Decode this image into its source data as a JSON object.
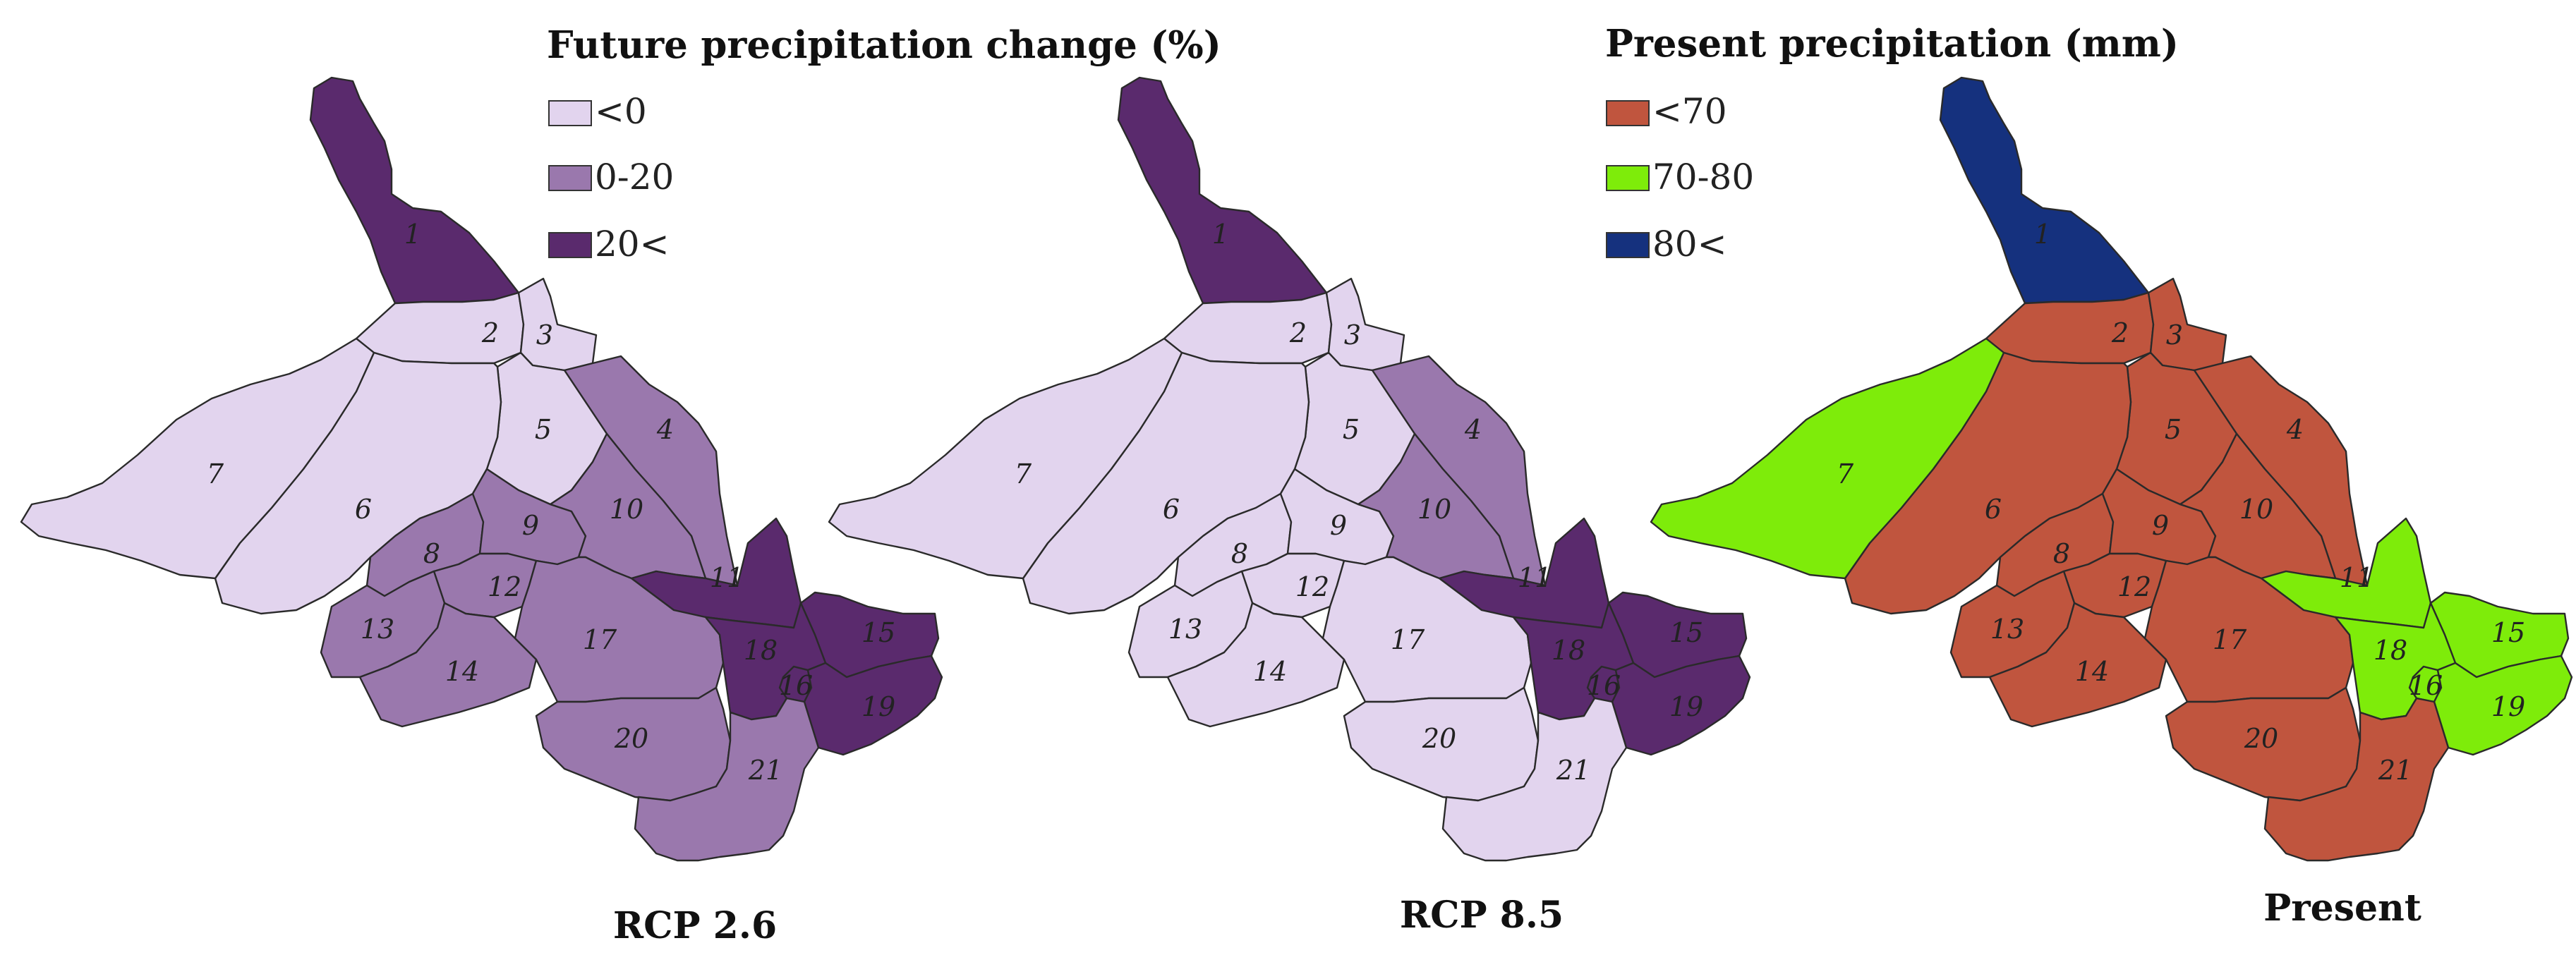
{
  "legends": {
    "future": {
      "title": "Future precipitation change (%)",
      "classes": [
        {
          "label": "<0",
          "color": "#e2d4ee"
        },
        {
          "label": "0-20",
          "color": "#9a78ad"
        },
        {
          "label": "20<",
          "color": "#5a2a6d"
        }
      ]
    },
    "present": {
      "title": "Present precipitation (mm)",
      "classes": [
        {
          "label": "<70",
          "color": "#c0553e"
        },
        {
          "label": "70-80",
          "color": "#7eec0a"
        },
        {
          "label": "80<",
          "color": "#15317e"
        }
      ]
    }
  },
  "panels": [
    {
      "title": "RCP 2.6",
      "legend": "future",
      "classes": {
        "1": 2,
        "2": 0,
        "3": 0,
        "4": 1,
        "5": 0,
        "6": 0,
        "7": 0,
        "8": 1,
        "9": 1,
        "10": 1,
        "11": 2,
        "12": 1,
        "13": 1,
        "14": 1,
        "15": 2,
        "16": 2,
        "17": 1,
        "18": 2,
        "19": 2,
        "20": 1,
        "21": 1
      }
    },
    {
      "title": "RCP 8.5",
      "legend": "future",
      "classes": {
        "1": 2,
        "2": 0,
        "3": 0,
        "4": 1,
        "5": 0,
        "6": 0,
        "7": 0,
        "8": 0,
        "9": 0,
        "10": 1,
        "11": 2,
        "12": 0,
        "13": 0,
        "14": 0,
        "15": 2,
        "16": 2,
        "17": 0,
        "18": 2,
        "19": 2,
        "20": 0,
        "21": 0
      }
    },
    {
      "title": "Present",
      "legend": "present",
      "classes": {
        "1": 2,
        "2": 0,
        "3": 0,
        "4": 0,
        "5": 0,
        "6": 0,
        "7": 1,
        "8": 0,
        "9": 0,
        "10": 0,
        "11": 1,
        "12": 0,
        "13": 0,
        "14": 0,
        "15": 1,
        "16": 1,
        "17": 0,
        "18": 1,
        "19": 1,
        "20": 0,
        "21": 0
      }
    }
  ]
}
